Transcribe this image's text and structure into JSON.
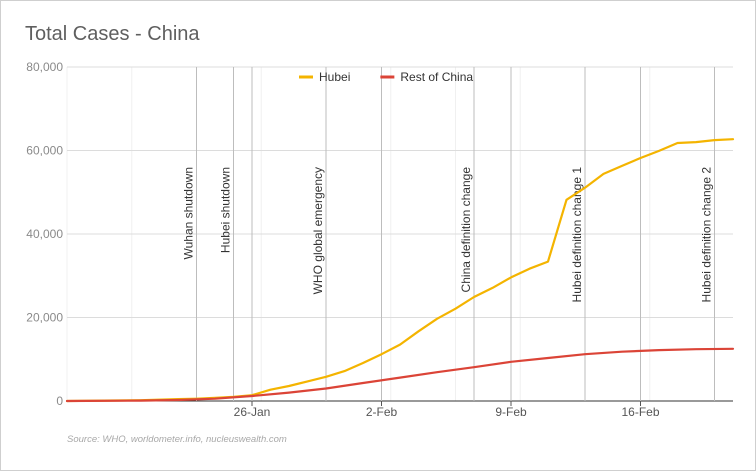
{
  "chart_data": {
    "type": "line",
    "title": "Total Cases - China",
    "source": "Source: WHO, worldometer.info, nucleuswealth.com",
    "xlabel": "",
    "ylabel": "",
    "ylim": [
      0,
      80000
    ],
    "y_ticks": [
      "0",
      "20,000",
      "40,000",
      "60,000",
      "80,000"
    ],
    "y_tick_values": [
      0,
      20000,
      40000,
      60000,
      80000
    ],
    "x_start_date": "2020-01-16",
    "x_end_date": "2020-02-21",
    "x_ticks": [
      {
        "date": "2020-01-26",
        "label": "26-Jan"
      },
      {
        "date": "2020-02-02",
        "label": "2-Feb"
      },
      {
        "date": "2020-02-09",
        "label": "9-Feb"
      },
      {
        "date": "2020-02-16",
        "label": "16-Feb"
      }
    ],
    "legend_position": "top",
    "grid": true,
    "series": [
      {
        "name": "Hubei",
        "color": "#f4b400",
        "points": [
          [
            "2020-01-16",
            0
          ],
          [
            "2020-01-20",
            200
          ],
          [
            "2020-01-22",
            450
          ],
          [
            "2020-01-23",
            550
          ],
          [
            "2020-01-24",
            750
          ],
          [
            "2020-01-25",
            1000
          ],
          [
            "2020-01-26",
            1400
          ],
          [
            "2020-01-27",
            2700
          ],
          [
            "2020-01-28",
            3600
          ],
          [
            "2020-01-29",
            4700
          ],
          [
            "2020-01-30",
            5800
          ],
          [
            "2020-01-31",
            7150
          ],
          [
            "2020-02-01",
            9100
          ],
          [
            "2020-02-02",
            11200
          ],
          [
            "2020-02-03",
            13500
          ],
          [
            "2020-02-04",
            16700
          ],
          [
            "2020-02-05",
            19700
          ],
          [
            "2020-02-06",
            22100
          ],
          [
            "2020-02-07",
            24900
          ],
          [
            "2020-02-08",
            27100
          ],
          [
            "2020-02-09",
            29600
          ],
          [
            "2020-02-10",
            31700
          ],
          [
            "2020-02-11",
            33400
          ],
          [
            "2020-02-12",
            48200
          ],
          [
            "2020-02-13",
            51100
          ],
          [
            "2020-02-14",
            54400
          ],
          [
            "2020-02-15",
            56300
          ],
          [
            "2020-02-16",
            58200
          ],
          [
            "2020-02-17",
            59900
          ],
          [
            "2020-02-18",
            61800
          ],
          [
            "2020-02-19",
            62000
          ],
          [
            "2020-02-20",
            62500
          ],
          [
            "2020-02-21",
            62700
          ]
        ]
      },
      {
        "name": "Rest of China",
        "color": "#db4437",
        "points": [
          [
            "2020-01-16",
            0
          ],
          [
            "2020-01-20",
            100
          ],
          [
            "2020-01-22",
            250
          ],
          [
            "2020-01-24",
            550
          ],
          [
            "2020-01-26",
            1200
          ],
          [
            "2020-01-28",
            2000
          ],
          [
            "2020-01-30",
            3000
          ],
          [
            "2020-02-01",
            4300
          ],
          [
            "2020-02-03",
            5600
          ],
          [
            "2020-02-05",
            6900
          ],
          [
            "2020-02-07",
            8100
          ],
          [
            "2020-02-09",
            9400
          ],
          [
            "2020-02-11",
            10300
          ],
          [
            "2020-02-13",
            11200
          ],
          [
            "2020-02-15",
            11800
          ],
          [
            "2020-02-17",
            12200
          ],
          [
            "2020-02-19",
            12400
          ],
          [
            "2020-02-21",
            12500
          ]
        ]
      }
    ],
    "annotations": [
      {
        "date": "2020-01-23",
        "label": "Wuhan shutdown"
      },
      {
        "date": "2020-01-25",
        "label": "Hubei shutdown"
      },
      {
        "date": "2020-01-30",
        "label": "WHO global emergency"
      },
      {
        "date": "2020-02-07",
        "label": "China definition change"
      },
      {
        "date": "2020-02-13",
        "label": "Hubei definition change 1"
      },
      {
        "date": "2020-02-20",
        "label": "Hubei definition change 2"
      }
    ]
  }
}
